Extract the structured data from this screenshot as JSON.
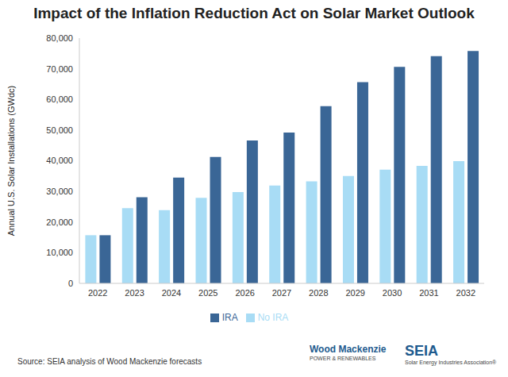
{
  "chart_data": {
    "type": "bar",
    "title": "Impact of the Inflation Reduction Act on Solar Market Outlook",
    "y_label": "Annual U.S. Solar Installations (GWdc)",
    "categories": [
      "2022",
      "2023",
      "2024",
      "2025",
      "2026",
      "2027",
      "2028",
      "2029",
      "2030",
      "2031",
      "2032"
    ],
    "series": [
      {
        "name": "No IRA",
        "color": "#a8dcf5",
        "values": [
          15700,
          24500,
          23900,
          27900,
          29800,
          31900,
          33300,
          35000,
          37100,
          38300,
          39900
        ]
      },
      {
        "name": "IRA",
        "color": "#3a6696",
        "values": [
          15700,
          28100,
          34500,
          41200,
          46600,
          49200,
          57800,
          65600,
          70600,
          74100,
          75800
        ]
      }
    ],
    "ylim": [
      0,
      80000
    ],
    "yticks": [
      0,
      {
        "value": 10000,
        "label": "10,000"
      },
      {
        "value": 20000,
        "label": "20,000"
      },
      {
        "value": 30000,
        "label": "30,000"
      },
      {
        "value": 40000,
        "label": "40,000"
      },
      {
        "value": 50000,
        "label": "50,000"
      },
      {
        "value": 60000,
        "label": "60,000"
      },
      {
        "value": 70000,
        "label": "70,000"
      },
      {
        "value": 80000,
        "label": "80,000"
      }
    ],
    "grid": false,
    "legend": "bottom",
    "annotations": [
      "Source: SEIA analysis of Wood Mackenzie forecasts",
      "Wood Mackenzie",
      "POWER & RENEWABLES",
      "SEIA",
      "Solar Energy Industries Association®"
    ]
  }
}
